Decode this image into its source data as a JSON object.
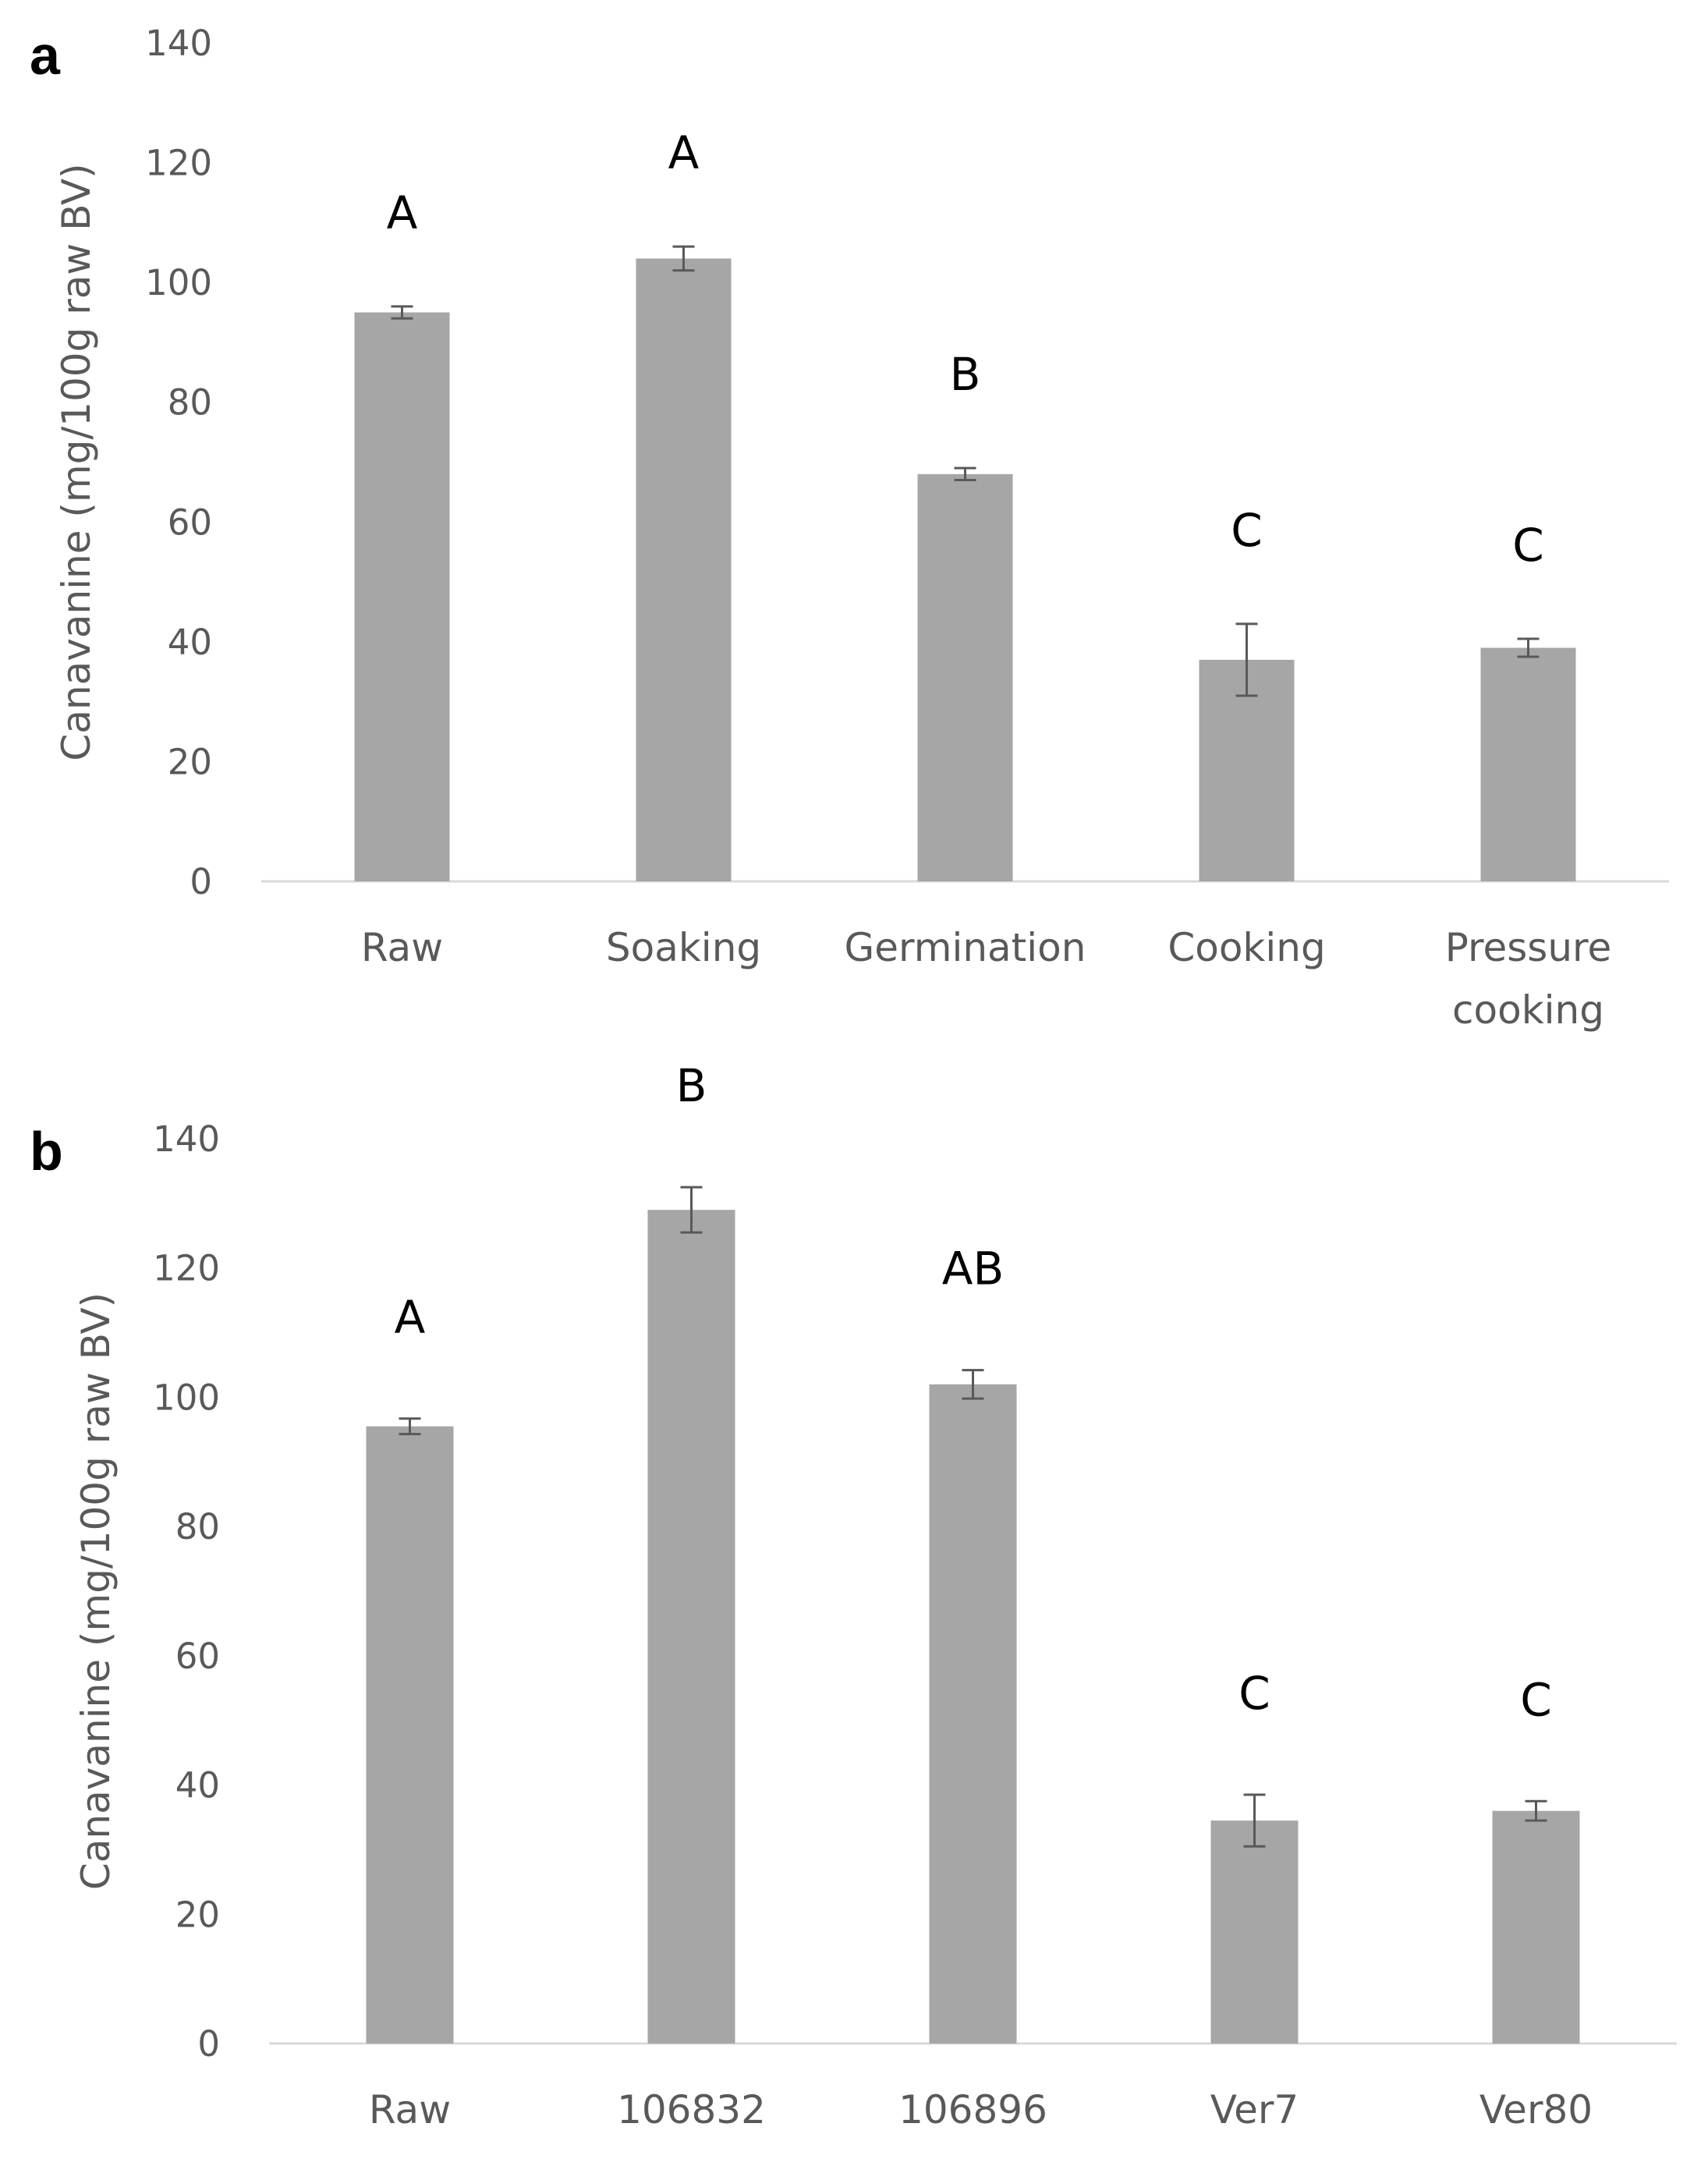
{
  "chart_data": [
    {
      "type": "bar",
      "panel": "a",
      "ylabel": "Canavanine (mg/100g raw BV)",
      "xlabel": "",
      "ylim": [
        0,
        140
      ],
      "yticks": [
        0,
        20,
        40,
        60,
        80,
        100,
        120,
        140
      ],
      "gridlines": false,
      "bar_color": "#a6a6a6",
      "categories": [
        [
          "Raw"
        ],
        [
          "Soaking"
        ],
        [
          "Germination"
        ],
        [
          "Cooking"
        ],
        [
          "Pressure",
          "cooking"
        ]
      ],
      "values": [
        95,
        104,
        68,
        37,
        39
      ],
      "errors": [
        1,
        2,
        1,
        6,
        1.5
      ],
      "significance": [
        "A",
        "A",
        "B",
        "C",
        "C"
      ]
    },
    {
      "type": "bar",
      "panel": "b",
      "ylabel": "Canavanine (mg/100g raw BV)",
      "xlabel": "",
      "ylim": [
        0,
        140
      ],
      "yticks": [
        0,
        20,
        40,
        60,
        80,
        100,
        120,
        140
      ],
      "gridlines": false,
      "bar_color": "#a6a6a6",
      "categories": [
        [
          "Raw"
        ],
        [
          "106832"
        ],
        [
          "106896"
        ],
        [
          "Ver7"
        ],
        [
          "Ver80"
        ]
      ],
      "values": [
        95.5,
        129,
        102,
        34.5,
        36
      ],
      "errors": [
        1.2,
        3.5,
        2.2,
        4,
        1.5
      ],
      "significance": [
        "A",
        "B",
        "AB",
        "C",
        "C"
      ]
    }
  ]
}
